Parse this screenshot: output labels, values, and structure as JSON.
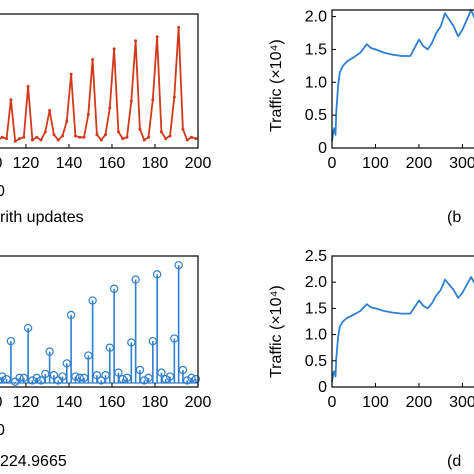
{
  "chart_data": [
    {
      "type": "line",
      "panel": "a",
      "x_ticks": [
        "120",
        "140",
        "160",
        "180",
        "200"
      ],
      "x_ticks_partial": [
        "0"
      ],
      "y_ticks": [],
      "xlim": [
        107,
        200
      ],
      "ylim": [
        0,
        1
      ],
      "axis_label_partial": "0",
      "caption_partial": "rith updates",
      "series": [
        {
          "color": "#d03a1a",
          "marker": "dot",
          "x": [
            107,
            109,
            111,
            113,
            115,
            117,
            119,
            121,
            123,
            125,
            127,
            129,
            131,
            133,
            135,
            137,
            139,
            141,
            143,
            145,
            147,
            149,
            151,
            153,
            155,
            157,
            159,
            161,
            163,
            165,
            167,
            169,
            171,
            173,
            175,
            177,
            179,
            181,
            183,
            185,
            187,
            189,
            191,
            193,
            195,
            197,
            199
          ],
          "y": [
            0.06,
            0.08,
            0.07,
            0.36,
            0.05,
            0.07,
            0.08,
            0.46,
            0.06,
            0.08,
            0.06,
            0.12,
            0.28,
            0.1,
            0.06,
            0.09,
            0.2,
            0.55,
            0.09,
            0.08,
            0.08,
            0.25,
            0.66,
            0.1,
            0.06,
            0.1,
            0.3,
            0.74,
            0.12,
            0.07,
            0.08,
            0.35,
            0.8,
            0.14,
            0.06,
            0.08,
            0.36,
            0.83,
            0.12,
            0.07,
            0.09,
            0.38,
            0.9,
            0.14,
            0.06,
            0.08,
            0.07
          ]
        }
      ]
    },
    {
      "type": "line",
      "panel": "b",
      "ylabel": "Traffic (×10⁴)",
      "x_ticks": [
        "0",
        "100",
        "200",
        "300"
      ],
      "y_ticks": [
        "0",
        "0.5",
        "1.0",
        "1.5",
        "2.0"
      ],
      "xlim": [
        0,
        345
      ],
      "ylim": [
        0,
        2.1
      ],
      "caption_partial": "(b",
      "series": [
        {
          "color": "#2f7fd0",
          "x": [
            0,
            3,
            5,
            8,
            10,
            14,
            18,
            25,
            35,
            50,
            65,
            80,
            90,
            100,
            120,
            140,
            160,
            180,
            200,
            210,
            220,
            230,
            240,
            250,
            260,
            270,
            280,
            290,
            300,
            310,
            320,
            330,
            340,
            345
          ],
          "y": [
            0.1,
            0.25,
            0.3,
            0.2,
            0.55,
            0.95,
            1.15,
            1.25,
            1.32,
            1.38,
            1.45,
            1.58,
            1.52,
            1.5,
            1.45,
            1.42,
            1.4,
            1.4,
            1.65,
            1.55,
            1.5,
            1.6,
            1.75,
            1.85,
            2.05,
            1.95,
            1.85,
            1.7,
            1.8,
            1.95,
            2.1,
            1.95,
            1.8,
            1.75
          ]
        }
      ]
    },
    {
      "type": "line",
      "panel": "c",
      "x_ticks": [
        "120",
        "140",
        "160",
        "180",
        "200"
      ],
      "x_ticks_partial": [
        "0"
      ],
      "y_ticks": [],
      "xlim": [
        107,
        200
      ],
      "ylim": [
        0,
        1
      ],
      "axis_label_partial": "0",
      "caption_partial": "224.9665",
      "series": [
        {
          "color": "#2f7fd0",
          "marker": "open-circle-stem",
          "x": [
            107,
            109,
            111,
            113,
            115,
            117,
            119,
            121,
            123,
            125,
            127,
            129,
            131,
            133,
            135,
            137,
            139,
            141,
            143,
            145,
            147,
            149,
            151,
            153,
            155,
            157,
            159,
            161,
            163,
            165,
            167,
            169,
            171,
            173,
            175,
            177,
            179,
            181,
            183,
            185,
            187,
            189,
            191,
            193,
            195,
            197,
            199
          ],
          "y": [
            0.05,
            0.08,
            0.06,
            0.35,
            0.04,
            0.07,
            0.07,
            0.45,
            0.05,
            0.07,
            0.05,
            0.1,
            0.27,
            0.09,
            0.05,
            0.08,
            0.18,
            0.55,
            0.08,
            0.07,
            0.07,
            0.24,
            0.66,
            0.09,
            0.05,
            0.09,
            0.3,
            0.75,
            0.11,
            0.06,
            0.07,
            0.34,
            0.82,
            0.13,
            0.05,
            0.07,
            0.35,
            0.86,
            0.11,
            0.06,
            0.08,
            0.37,
            0.93,
            0.13,
            0.05,
            0.07,
            0.06
          ]
        }
      ]
    },
    {
      "type": "line",
      "panel": "d",
      "ylabel": "Traffic (×10⁴)",
      "x_ticks": [
        "0",
        "100",
        "200",
        "300"
      ],
      "y_ticks": [
        "0",
        "0.5",
        "1.0",
        "1.5",
        "2.0",
        "2.5"
      ],
      "xlim": [
        0,
        345
      ],
      "ylim": [
        0,
        2.5
      ],
      "caption_partial": "(d",
      "series": [
        {
          "color": "#2f7fd0",
          "x": [
            0,
            3,
            5,
            8,
            10,
            14,
            18,
            25,
            35,
            50,
            65,
            80,
            90,
            100,
            120,
            140,
            160,
            180,
            200,
            210,
            220,
            230,
            240,
            250,
            260,
            270,
            280,
            290,
            300,
            310,
            320,
            330,
            340,
            345
          ],
          "y": [
            0.1,
            0.25,
            0.3,
            0.2,
            0.55,
            0.95,
            1.15,
            1.25,
            1.32,
            1.38,
            1.45,
            1.58,
            1.52,
            1.5,
            1.45,
            1.42,
            1.4,
            1.4,
            1.65,
            1.55,
            1.5,
            1.6,
            1.75,
            1.85,
            2.05,
            1.95,
            1.85,
            1.7,
            1.8,
            1.95,
            2.1,
            1.95,
            1.8,
            1.75
          ]
        }
      ]
    }
  ]
}
